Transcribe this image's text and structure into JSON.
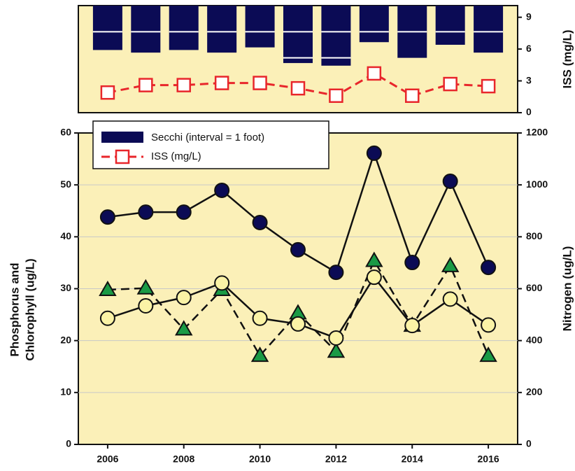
{
  "chart_data": [
    {
      "type": "bar+line",
      "x": [
        2006,
        2007,
        2008,
        2009,
        2010,
        2011,
        2012,
        2013,
        2014,
        2015,
        2016
      ],
      "xlim": [
        2005.23,
        2016.77
      ],
      "ylim": [
        4.1,
        0
      ],
      "y2lim": [
        0,
        10.1
      ],
      "y2ticks": [
        0,
        3,
        6,
        9
      ],
      "y2label": "ISS (mg/L)",
      "series": [
        {
          "name": "Secchi (interval = 1 foot)",
          "type": "bar",
          "color": "#0b0b55",
          "values": [
            1.7,
            1.8,
            1.7,
            1.8,
            1.6,
            2.2,
            2.3,
            1.4,
            2.0,
            1.5,
            1.8
          ]
        },
        {
          "name": "ISS (mg/L)",
          "type": "line",
          "axis": "y2",
          "color": "#e8262b",
          "values": [
            1.9,
            2.6,
            2.6,
            2.8,
            2.8,
            2.3,
            1.6,
            3.7,
            1.6,
            2.7,
            2.5
          ]
        }
      ]
    },
    {
      "type": "line",
      "x": [
        2006,
        2007,
        2008,
        2009,
        2010,
        2011,
        2012,
        2013,
        2014,
        2015,
        2016
      ],
      "xlim": [
        2005.23,
        2016.77
      ],
      "xticks": [
        2006,
        2008,
        2010,
        2012,
        2014,
        2016
      ],
      "ylim": [
        0,
        60
      ],
      "yticks": [
        0,
        10,
        20,
        30,
        40,
        50,
        60
      ],
      "y2lim": [
        0,
        1200
      ],
      "y2ticks": [
        0,
        200,
        400,
        600,
        800,
        1000,
        1200
      ],
      "ylabel": [
        "Phosphorus and",
        "Chlorophyll (ug/L)"
      ],
      "y2label": "Nitrogen (ug/L)",
      "grid": true,
      "series": [
        {
          "axis": "y2",
          "marker": "circle",
          "color": "#0b0b55",
          "dash": false,
          "values": [
            876,
            895,
            895,
            979,
            855,
            750,
            663,
            1122,
            701,
            1014,
            682
          ]
        },
        {
          "axis": "y",
          "marker": "triangle",
          "color": "#1a9a45",
          "dash": true,
          "values": [
            29.8,
            30.1,
            22.2,
            29.8,
            17.1,
            25.3,
            17.9,
            35.4,
            22.9,
            34.4,
            17.1
          ]
        },
        {
          "axis": "y",
          "marker": "circle",
          "color": "#fbf3a6",
          "dash": false,
          "values": [
            24.3,
            26.7,
            28.3,
            31.1,
            24.3,
            23.2,
            20.5,
            32.2,
            22.9,
            28.0,
            23.0
          ]
        }
      ]
    }
  ]
}
